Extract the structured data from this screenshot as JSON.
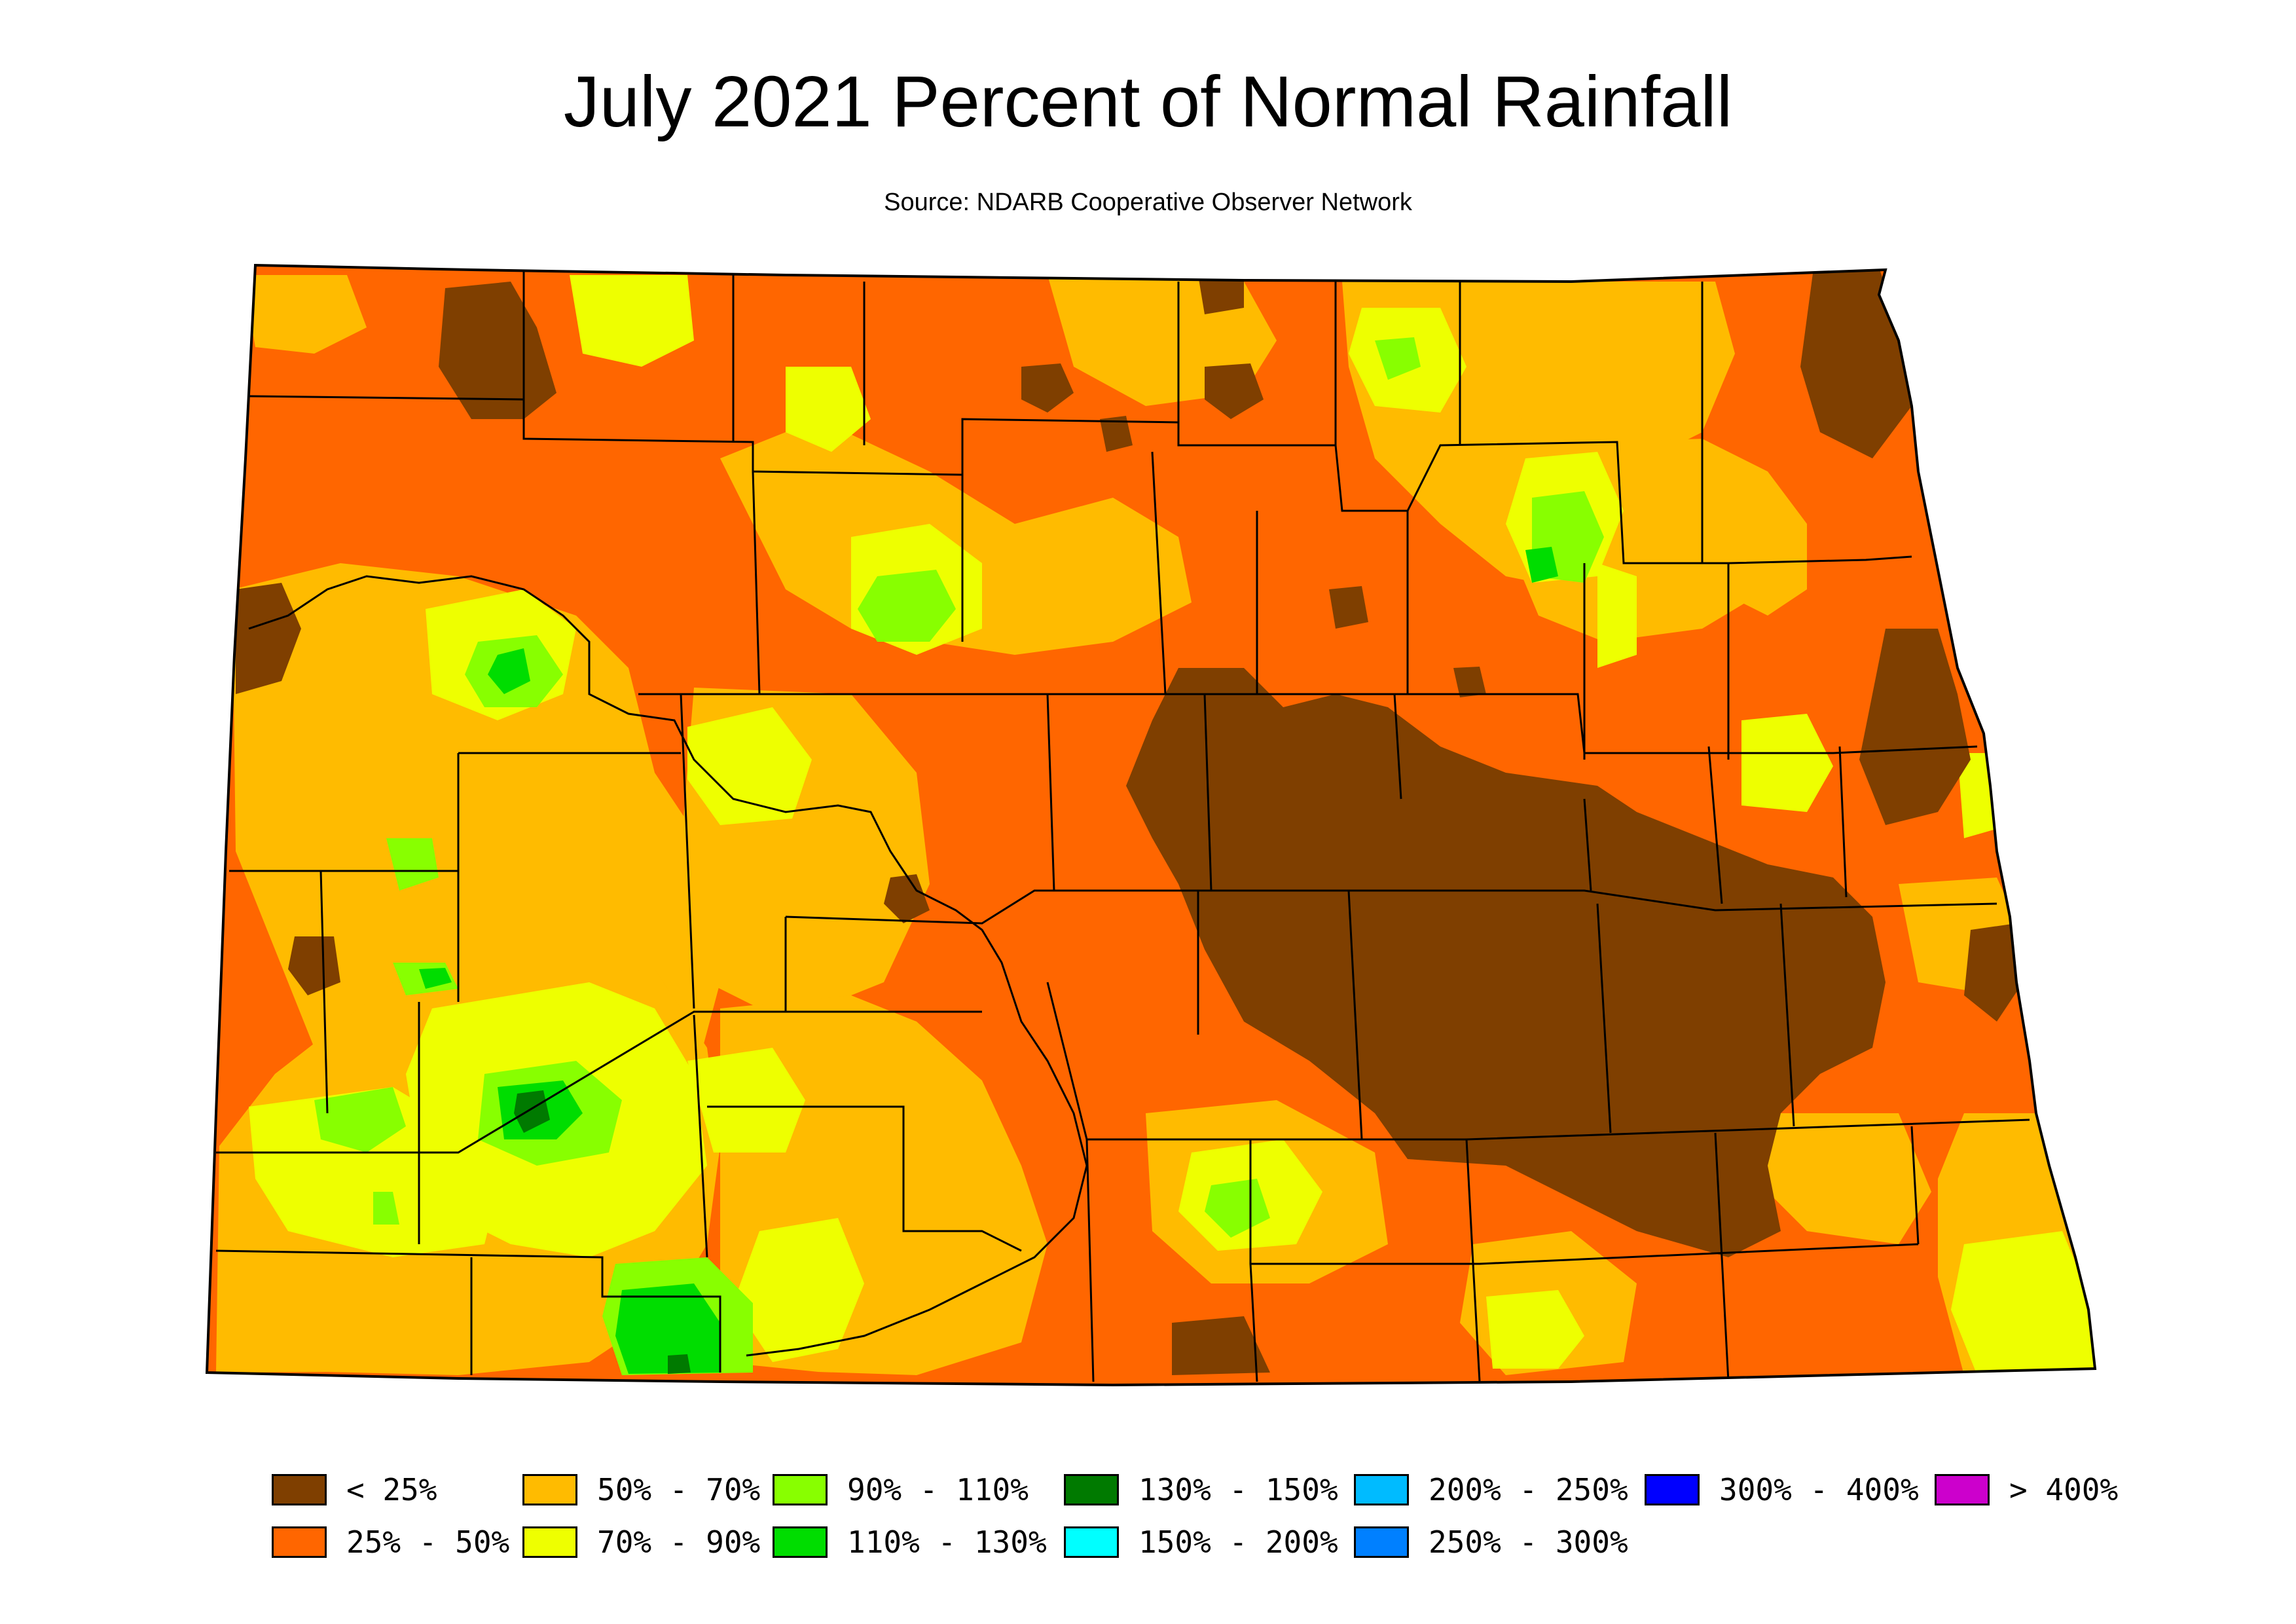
{
  "header": {
    "title": "July 2021 Percent of Normal Rainfall",
    "subtitle": "Source: NDARB Cooperative Observer Network"
  },
  "map": {
    "region": "North Dakota",
    "dominant_category": "25% - 50%"
  },
  "legend": {
    "items": [
      {
        "label": "< 25%",
        "color": "#7f3f00"
      },
      {
        "label": "25% - 50%",
        "color": "#ff6600"
      },
      {
        "label": "50% - 70%",
        "color": "#ffbb00"
      },
      {
        "label": "70% - 90%",
        "color": "#eeff00"
      },
      {
        "label": "90% - 110%",
        "color": "#88ff00"
      },
      {
        "label": "110% - 130%",
        "color": "#00dd00"
      },
      {
        "label": "130% - 150%",
        "color": "#007a00"
      },
      {
        "label": "150% - 200%",
        "color": "#00ffff"
      },
      {
        "label": "200% - 250%",
        "color": "#00bbff"
      },
      {
        "label": "250% - 300%",
        "color": "#0080ff"
      },
      {
        "label": "300% - 400%",
        "color": "#0000ff"
      },
      {
        "label": "> 400%",
        "color": "#cc00cc"
      }
    ]
  }
}
